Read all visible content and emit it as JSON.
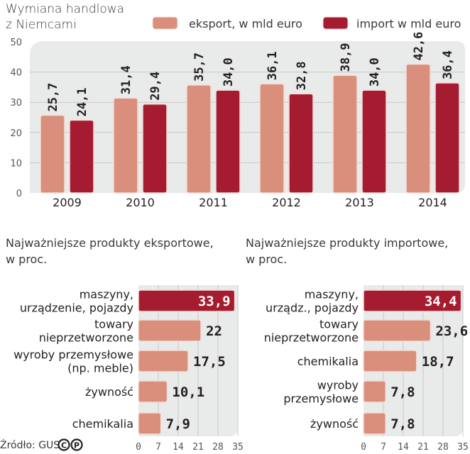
{
  "colors": {
    "export": "#d98f7c",
    "import": "#a51c30",
    "plot_bg": "#e9eaea",
    "grid": "#c8c8c8",
    "bar_stroke": "#f3ddd6"
  },
  "chart_data": [
    {
      "type": "bar",
      "title": "Wymiana handlowa z Niemcami",
      "title_lines": [
        "Wymiana handlowa",
        "z Niemcami"
      ],
      "categories": [
        "2009",
        "2010",
        "2011",
        "2012",
        "2013",
        "2014"
      ],
      "series": [
        {
          "name": "eksport, w mld euro",
          "key": "export",
          "values": [
            25.7,
            31.4,
            35.7,
            36.1,
            38.9,
            42.6
          ],
          "labels": [
            "25,7",
            "31,4",
            "35,7",
            "36,1",
            "38,9",
            "42,6"
          ]
        },
        {
          "name": "import w mld euro",
          "key": "import",
          "values": [
            24.1,
            29.4,
            34.0,
            32.8,
            34.0,
            36.4
          ],
          "labels": [
            "24,1",
            "29,4",
            "34,0",
            "32,8",
            "34,0",
            "36,4"
          ]
        }
      ],
      "xlabel": "",
      "ylabel": "",
      "ylim": [
        0,
        50
      ],
      "yticks": [
        "0",
        "10",
        "20",
        "30",
        "40",
        "50"
      ],
      "grid": true,
      "legend": "top-right"
    },
    {
      "type": "bar",
      "orientation": "horizontal",
      "title_lines": [
        "Najważniejsze produkty eksportowe,",
        "w proc."
      ],
      "categories": [
        [
          "maszyny,",
          "urządzenie, pojazdy"
        ],
        [
          "towary",
          "nieprzetworzone"
        ],
        [
          "wyroby przemysłowe",
          "(np. meble)"
        ],
        [
          "żywność"
        ],
        [
          "chemikalia"
        ]
      ],
      "values": [
        33.9,
        22,
        17.5,
        10.1,
        7.9
      ],
      "labels": [
        "33,9",
        "22",
        "17,5",
        "10,1",
        "7,9"
      ],
      "highlight": [
        true,
        false,
        false,
        false,
        false
      ],
      "xlim": [
        0,
        35
      ],
      "xticks": [
        "0",
        "7",
        "14",
        "21",
        "28",
        "35"
      ],
      "grid": true
    },
    {
      "type": "bar",
      "orientation": "horizontal",
      "title_lines": [
        "Najważniejsze produkty importowe,",
        "w proc."
      ],
      "categories": [
        [
          "maszyny,",
          "urządz., pojazdy"
        ],
        [
          "towary",
          "nieprzetworzone"
        ],
        [
          "chemikalia"
        ],
        [
          "wyroby",
          "przemysłowe"
        ],
        [
          "żywność"
        ]
      ],
      "values": [
        34.4,
        23.6,
        18.7,
        7.8,
        7.8
      ],
      "labels": [
        "34,4",
        "23,6",
        "18,7",
        "7,8",
        "7,8"
      ],
      "highlight": [
        true,
        false,
        false,
        false,
        false
      ],
      "xlim": [
        0,
        35
      ],
      "xticks": [
        "0",
        "7",
        "14",
        "21",
        "28",
        "35"
      ],
      "grid": true
    }
  ],
  "source": {
    "text": "Źródło: GUS",
    "icons": [
      "copyright-icon",
      "p-icon"
    ]
  }
}
